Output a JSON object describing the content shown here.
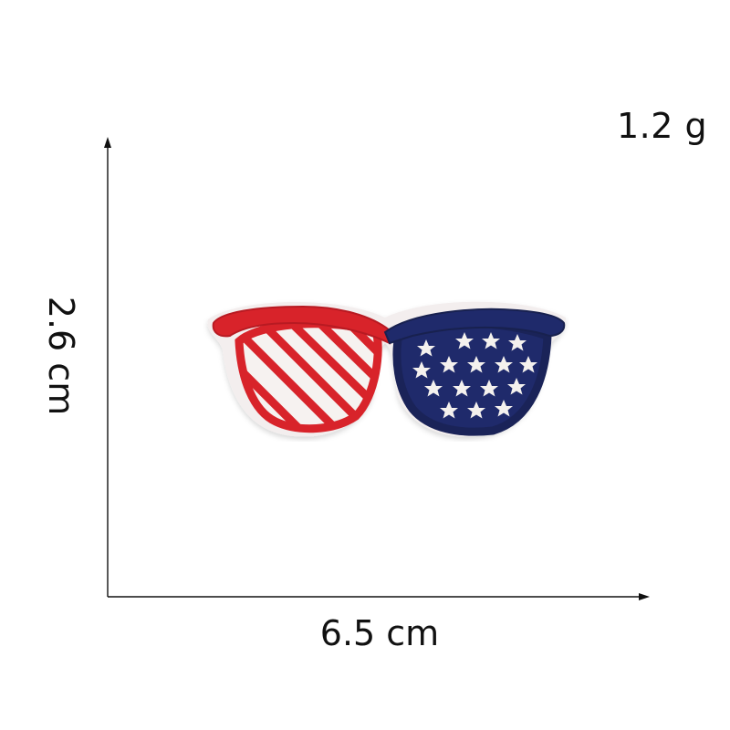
{
  "product": {
    "name": "stars-and-stripes-sunglasses-patch",
    "weight_label": "1.2 g",
    "width_label": "6.5 cm",
    "height_label": "2.6 cm"
  },
  "colors": {
    "red": "#d8232a",
    "navy": "#1f2a6b",
    "white": "#f4f1ee",
    "arrow": "#111111"
  },
  "icons": {
    "stars": "star-icon"
  }
}
